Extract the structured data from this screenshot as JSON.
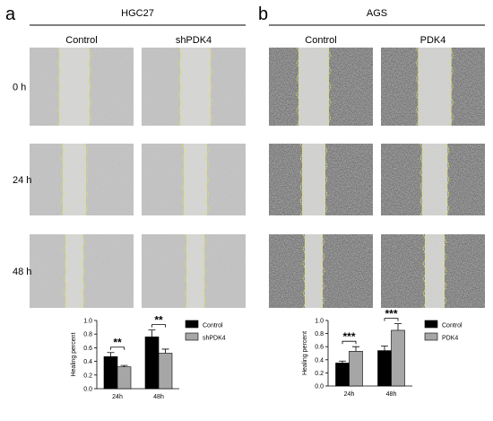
{
  "panels": [
    {
      "letter": "a",
      "cell_line": "HGC27",
      "columns": [
        "Control",
        "shPDK4"
      ]
    },
    {
      "letter": "b",
      "cell_line": "AGS",
      "columns": [
        "Control",
        "PDK4"
      ]
    }
  ],
  "rows": [
    "0 h",
    "24 h",
    "48 h"
  ],
  "chart_data": [
    {
      "type": "bar",
      "ylabel": "Healing percent",
      "categories": [
        "24h",
        "48h"
      ],
      "series": [
        {
          "name": "Control",
          "color": "#000000",
          "values": [
            0.47,
            0.76
          ],
          "errors": [
            0.06,
            0.1
          ]
        },
        {
          "name": "shPDK4",
          "color": "#a6a6a6",
          "values": [
            0.32,
            0.52
          ],
          "errors": [
            0.02,
            0.06
          ]
        }
      ],
      "significance": [
        "**",
        "**"
      ],
      "ylim": [
        0,
        1.0
      ],
      "yticks": [
        {
          "value": 0,
          "label": "0.0"
        },
        0.2,
        0.4,
        0.6,
        0.8,
        {
          "value": 1.0,
          "label": "1.0"
        }
      ]
    },
    {
      "type": "bar",
      "ylabel": "Healing percent",
      "categories": [
        "24h",
        "48h"
      ],
      "series": [
        {
          "name": "Control",
          "color": "#000000",
          "values": [
            0.35,
            0.54
          ],
          "errors": [
            0.03,
            0.07
          ]
        },
        {
          "name": "PDK4",
          "color": "#a6a6a6",
          "values": [
            0.53,
            0.85
          ],
          "errors": [
            0.07,
            0.1
          ]
        }
      ],
      "significance": [
        "***",
        "***"
      ],
      "ylim": [
        0,
        1.0
      ],
      "yticks": [
        {
          "value": 0,
          "label": "0.0"
        },
        0.2,
        0.4,
        0.6,
        0.8,
        {
          "value": 1.0,
          "label": "1.0"
        }
      ]
    }
  ]
}
